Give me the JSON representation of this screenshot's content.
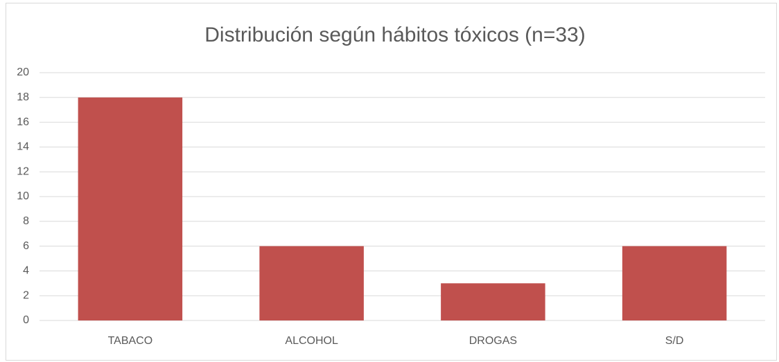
{
  "chart_data": {
    "type": "bar",
    "title": "Distribución según hábitos tóxicos (n=33)",
    "categories": [
      "TABACO",
      "ALCOHOL",
      "DROGAS",
      "S/D"
    ],
    "values": [
      18,
      6,
      3,
      6
    ],
    "color": "#c0504d",
    "ylim": [
      0,
      20
    ],
    "yticks": [
      0,
      2,
      4,
      6,
      8,
      10,
      12,
      14,
      16,
      18,
      20
    ],
    "grid": true
  }
}
